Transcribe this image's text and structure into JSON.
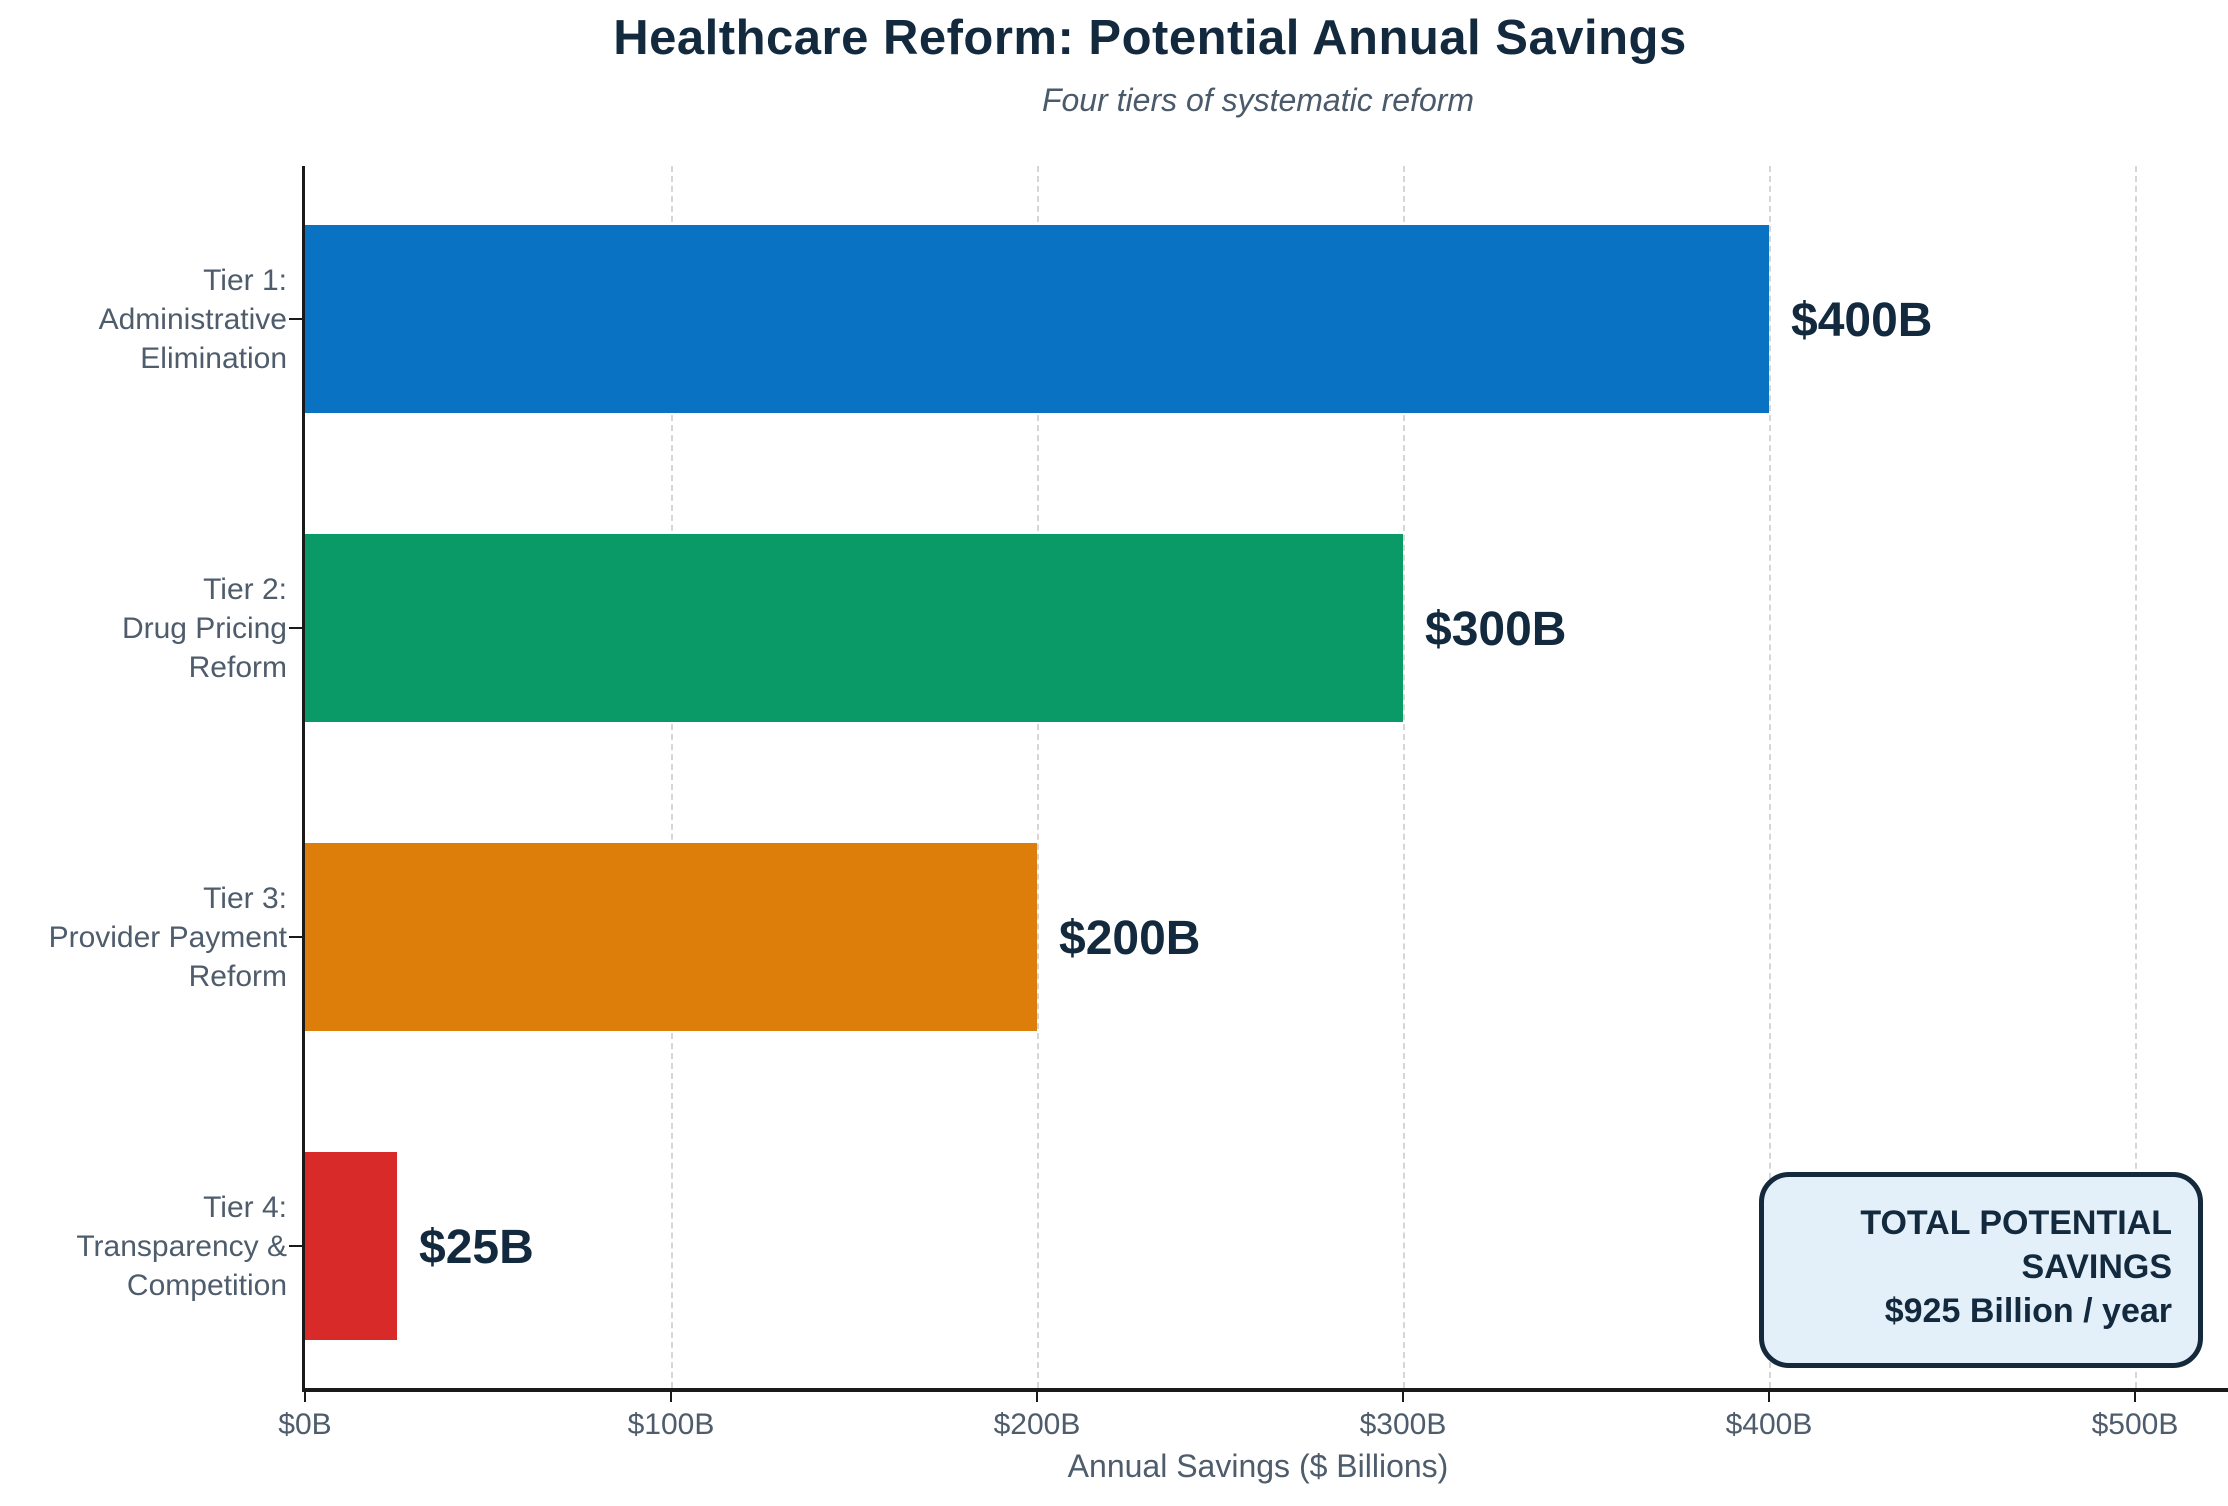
{
  "title": "Healthcare Reform: Potential Annual Savings",
  "subtitle": "Four tiers of systematic reform",
  "chart_data": {
    "type": "bar",
    "orientation": "horizontal",
    "title": "Healthcare Reform: Potential Annual Savings",
    "subtitle": "Four tiers of systematic reform",
    "xlabel": "Annual Savings ($ Billions)",
    "xlim": [
      0,
      525
    ],
    "grid": {
      "axis": "x",
      "style": "dashed",
      "color": "#d6d6d6"
    },
    "categories": [
      "Tier 1: Administrative Elimination",
      "Tier 2: Drug Pricing Reform",
      "Tier 3: Provider Payment Reform",
      "Tier 4: Transparency & Competition"
    ],
    "category_lines": [
      [
        "Tier 1:",
        "Administrative",
        "Elimination"
      ],
      [
        "Tier 2:",
        "Drug Pricing",
        "Reform"
      ],
      [
        "Tier 3:",
        "Provider Payment",
        "Reform"
      ],
      [
        "Tier 4:",
        "Transparency &",
        "Competition"
      ]
    ],
    "values": [
      400,
      300,
      200,
      25
    ],
    "value_labels": [
      "$400B",
      "$300B",
      "$200B",
      "$25B"
    ],
    "bar_colors": [
      "#0a72c2",
      "#0a9a68",
      "#dd7d0a",
      "#d82a29"
    ],
    "xticks": {
      "values": [
        0,
        100,
        200,
        300,
        400,
        500
      ],
      "labels": [
        "$0B",
        "$100B",
        "$200B",
        "$300B",
        "$400B",
        "$500B"
      ]
    },
    "legend": null,
    "annotation": {
      "line1": "TOTAL POTENTIAL SAVINGS",
      "line2": "$925 Billion / year",
      "bg": "#e3f0f9",
      "border": "#14293c"
    }
  },
  "colors": {
    "title": "#12293e",
    "axis_text": "#4e5c6c",
    "value_label": "#12293e",
    "spine": "#1a1a1a",
    "gridline": "#d6d6d6"
  }
}
